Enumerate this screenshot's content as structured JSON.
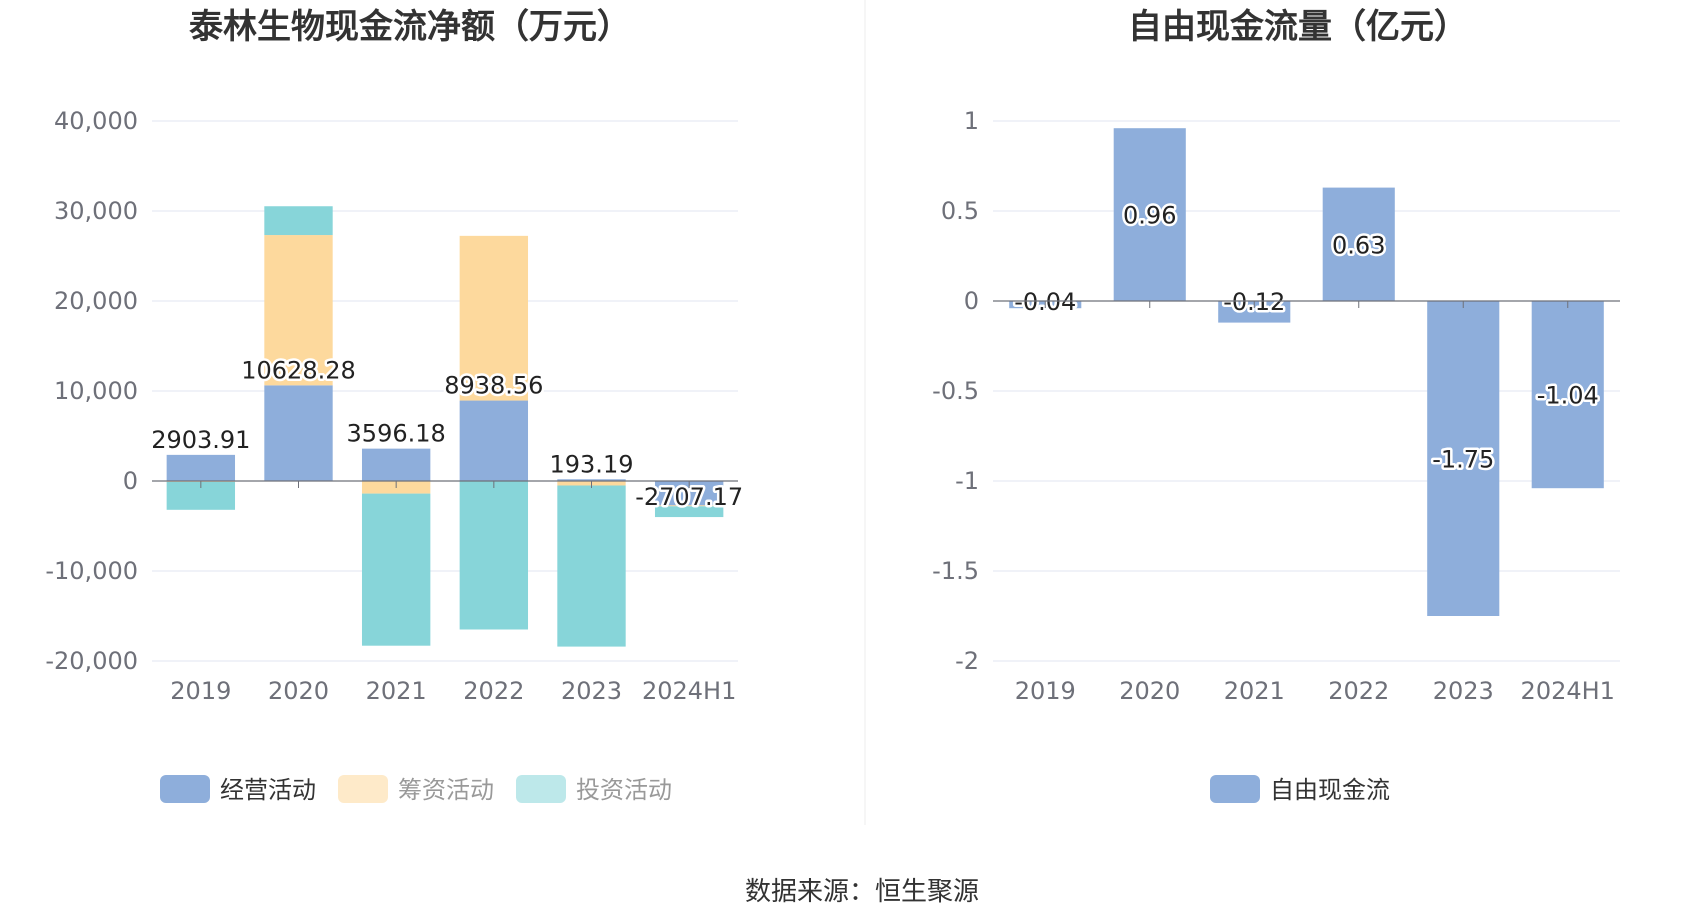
{
  "source": "数据来源：恒生聚源",
  "colors": {
    "operating": "#8eaedb",
    "financing": "#fdd99d",
    "investing": "#87d5d9",
    "fcf": "#8eaedb"
  },
  "chart_data": [
    {
      "type": "bar",
      "stacked": true,
      "title": "泰林生物现金流净额（万元）",
      "categories": [
        "2019",
        "2020",
        "2021",
        "2022",
        "2023",
        "2024H1"
      ],
      "ylim": [
        -20000,
        40000
      ],
      "yticks": [
        40000,
        30000,
        20000,
        10000,
        0,
        -10000,
        -20000
      ],
      "ytick_labels": [
        "40,000",
        "30,000",
        "20,000",
        "10,000",
        "0",
        "-10,000",
        "-20,000"
      ],
      "legend_position": "bottom",
      "series": [
        {
          "name": "经营活动",
          "key": "operating",
          "values": [
            2903.91,
            10628.28,
            3596.18,
            8938.56,
            193.19,
            -2707.17
          ],
          "labels": [
            "2903.91",
            "10628.28",
            "3596.18",
            "8938.56",
            "193.19",
            "-2707.17"
          ]
        },
        {
          "name": "筹资活动",
          "key": "financing",
          "values": [
            -100,
            16700,
            -1400,
            18300,
            -500,
            -100
          ]
        },
        {
          "name": "投资活动",
          "key": "investing",
          "values": [
            -3100,
            3200,
            -16900,
            -16500,
            -17900,
            -1200
          ]
        }
      ]
    },
    {
      "type": "bar",
      "title": "自由现金流量（亿元）",
      "categories": [
        "2019",
        "2020",
        "2021",
        "2022",
        "2023",
        "2024H1"
      ],
      "ylim": [
        -2,
        1
      ],
      "yticks": [
        1,
        0.5,
        0,
        -0.5,
        -1,
        -1.5,
        -2
      ],
      "ytick_labels": [
        "1",
        "0.5",
        "0",
        "-0.5",
        "-1",
        "-1.5",
        "-2"
      ],
      "legend_position": "bottom",
      "series": [
        {
          "name": "自由现金流",
          "key": "fcf",
          "values": [
            -0.04,
            0.96,
            -0.12,
            0.63,
            -1.75,
            -1.04
          ],
          "labels": [
            "-0.04",
            "0.96",
            "-0.12",
            "0.63",
            "-1.75",
            "-1.04"
          ]
        }
      ]
    }
  ]
}
